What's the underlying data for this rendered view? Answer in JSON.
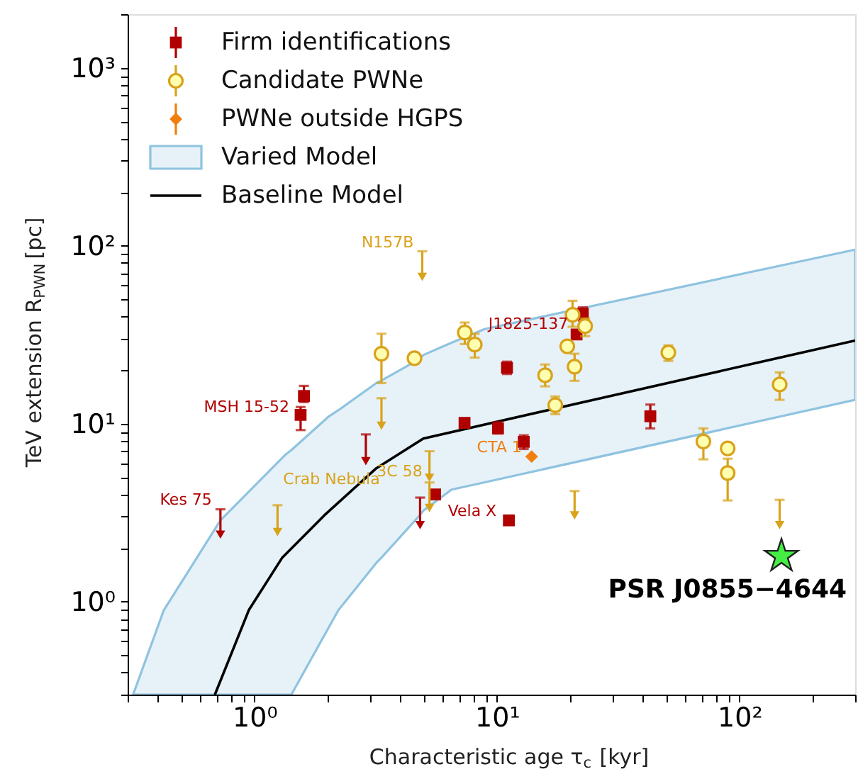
{
  "chart_data": {
    "type": "scatter",
    "xlabel": "Characteristic age τ$_{c}$ [kyr]",
    "ylabel": "TeV extension R$_{PWN}$ [pc]",
    "log": "xy",
    "grid": false,
    "legend": "top left",
    "xlim": [
      0.3,
      300
    ],
    "ylim": [
      0.3,
      2000
    ],
    "xticks": [
      {
        "value": 0.3,
        "label": null
      },
      {
        "value": 0.4,
        "label": null
      },
      {
        "value": 0.5,
        "label": null
      },
      {
        "value": 0.6,
        "label": null
      },
      {
        "value": 0.7,
        "label": null
      },
      {
        "value": 0.8,
        "label": null
      },
      {
        "value": 0.9,
        "label": null
      },
      {
        "value": 1,
        "label": "10⁰"
      },
      {
        "value": 2,
        "label": null
      },
      {
        "value": 3,
        "label": null
      },
      {
        "value": 4,
        "label": null
      },
      {
        "value": 5,
        "label": null
      },
      {
        "value": 6,
        "label": null
      },
      {
        "value": 7,
        "label": null
      },
      {
        "value": 8,
        "label": null
      },
      {
        "value": 9,
        "label": null
      },
      {
        "value": 10,
        "label": "10¹"
      },
      {
        "value": 20,
        "label": null
      },
      {
        "value": 30,
        "label": null
      },
      {
        "value": 40,
        "label": null
      },
      {
        "value": 50,
        "label": null
      },
      {
        "value": 60,
        "label": null
      },
      {
        "value": 70,
        "label": null
      },
      {
        "value": 80,
        "label": null
      },
      {
        "value": 90,
        "label": null
      },
      {
        "value": 100,
        "label": "10²"
      },
      {
        "value": 200,
        "label": null
      },
      {
        "value": 300,
        "label": null
      }
    ],
    "yticks": [
      {
        "value": 0.3,
        "label": null
      },
      {
        "value": 0.4,
        "label": null
      },
      {
        "value": 0.5,
        "label": null
      },
      {
        "value": 0.6,
        "label": null
      },
      {
        "value": 0.7,
        "label": null
      },
      {
        "value": 0.8,
        "label": null
      },
      {
        "value": 0.9,
        "label": null
      },
      {
        "value": 1,
        "label": "10⁰"
      },
      {
        "value": 2,
        "label": null
      },
      {
        "value": 3,
        "label": null
      },
      {
        "value": 4,
        "label": null
      },
      {
        "value": 5,
        "label": null
      },
      {
        "value": 6,
        "label": null
      },
      {
        "value": 7,
        "label": null
      },
      {
        "value": 8,
        "label": null
      },
      {
        "value": 9,
        "label": null
      },
      {
        "value": 10,
        "label": "10¹"
      },
      {
        "value": 20,
        "label": null
      },
      {
        "value": 30,
        "label": null
      },
      {
        "value": 40,
        "label": null
      },
      {
        "value": 50,
        "label": null
      },
      {
        "value": 60,
        "label": null
      },
      {
        "value": 70,
        "label": null
      },
      {
        "value": 80,
        "label": null
      },
      {
        "value": 90,
        "label": null
      },
      {
        "value": 100,
        "label": "10²"
      },
      {
        "value": 200,
        "label": null
      },
      {
        "value": 300,
        "label": null
      },
      {
        "value": 400,
        "label": null
      },
      {
        "value": 500,
        "label": null
      },
      {
        "value": 600,
        "label": null
      },
      {
        "value": 700,
        "label": null
      },
      {
        "value": 800,
        "label": null
      },
      {
        "value": 900,
        "label": null
      },
      {
        "value": 1000,
        "label": "10³"
      },
      {
        "value": 2000,
        "label": null
      }
    ],
    "series": [
      {
        "name": "Firm identifications",
        "type": "scatter",
        "marker": "square",
        "color": "#b00000",
        "x": [
          1.6,
          1.55,
          7.35,
          10.1,
          11.0,
          12.9,
          11.2,
          5.56,
          21.3,
          22.6,
          42.9
        ],
        "values": [
          14.3,
          11.2,
          10.1,
          9.4,
          20.6,
          7.9,
          2.86,
          4.0,
          31.7,
          41.5,
          11.0
        ],
        "errors": [
          [
            13.2,
            16.3
          ],
          [
            9.2,
            12.4
          ],
          null,
          [
            8.8,
            10.2
          ],
          [
            19.0,
            22.3
          ],
          [
            7.2,
            8.6
          ],
          null,
          null,
          null,
          [
            38,
            45
          ],
          [
            9.4,
            12.8
          ]
        ]
      },
      {
        "name": "Candidate PWNe",
        "type": "scatter",
        "marker": "circle",
        "color": "#d9a21b",
        "x": [
          3.34,
          4.57,
          7.37,
          8.1,
          15.8,
          17.4,
          19.5,
          20.5,
          23.1,
          20.9,
          50.9,
          146.5,
          71,
          89.4,
          89.4
        ],
        "values": [
          24.7,
          23.3,
          32.5,
          27.8,
          18.7,
          12.7,
          27.2,
          40.9,
          35.3,
          20.9,
          25.1,
          16.6,
          7.94,
          7.26,
          5.28
        ],
        "errors": [
          [
            16.9,
            32
          ],
          null,
          [
            28,
            37
          ],
          [
            23.5,
            32
          ],
          [
            16.2,
            21.5
          ],
          [
            11.3,
            14.2
          ],
          null,
          [
            35,
            49
          ],
          [
            31,
            39
          ],
          [
            17.4,
            24.7
          ],
          [
            22.5,
            27.5
          ],
          [
            13.6,
            19.4
          ],
          [
            6.3,
            9.4
          ],
          null,
          [
            3.7,
            6.35
          ]
        ]
      },
      {
        "name": "PWNe outside HGPS",
        "type": "scatter",
        "marker": "diamond",
        "color": "#f07f10",
        "x": [
          13.9
        ],
        "values": [
          6.53
        ],
        "errors": [
          null
        ]
      },
      {
        "name": "Varied Model",
        "type": "area",
        "color": "#8fc3e0",
        "x": [
          0.316,
          0.423,
          0.724,
          1.35,
          1.42,
          2.03,
          2.22,
          3.18,
          3.32,
          4.75,
          4.97,
          6.5,
          8.9,
          300
        ],
        "lower": [
          0.3,
          0.3,
          0.3,
          0.3,
          0.3,
          0.72,
          0.895,
          1.65,
          1.75,
          3.0,
          3.24,
          4.26,
          4.68,
          13.6
        ],
        "values": [
          null,
          null,
          null,
          null,
          null,
          null,
          null,
          null,
          null,
          null,
          null,
          null,
          null,
          null
        ],
        "upper": [
          0.3,
          0.895,
          2.86,
          6.74,
          7.1,
          11.0,
          11.9,
          16.9,
          17.4,
          22.9,
          24.3,
          28.5,
          34,
          95
        ]
      },
      {
        "name": "Baseline Model",
        "type": "line",
        "color": "#000000",
        "line_style": "solid",
        "x": [
          0.687,
          0.948,
          1.3,
          1.94,
          3.18,
          4.97,
          30,
          300
        ],
        "values": [
          0.3,
          0.895,
          1.76,
          3.05,
          5.61,
          8.25,
          14.4,
          29.3
        ]
      },
      {
        "type": "scatter",
        "marker": "triangle",
        "color": "#b00000",
        "x": [
          0.724,
          2.88,
          4.82
        ],
        "values": [
          2.38,
          6.15,
          2.69
        ],
        "errors": [
          [
            2.38,
            3.3
          ],
          [
            6.15,
            8.7
          ],
          [
            2.69,
            3.84
          ]
        ]
      },
      {
        "type": "scatter",
        "marker": "triangle",
        "color": "#d9a21b",
        "x": [
          4.92,
          1.245,
          3.34,
          5.27,
          5.27,
          20.9,
          146.5
        ],
        "values": [
          66.8,
          2.46,
          9.73,
          4.96,
          3.36,
          3.05,
          2.69
        ],
        "errors": [
          [
            66.8,
            93
          ],
          [
            2.46,
            3.48
          ],
          [
            9.73,
            13.9
          ],
          [
            4.96,
            7.0
          ],
          [
            3.36,
            4.67
          ],
          [
            3.05,
            4.18
          ],
          [
            2.69,
            3.73
          ]
        ]
      },
      {
        "type": "scatter",
        "marker": "star",
        "color": "#44ee44",
        "x": [
          149
        ],
        "values": [
          1.8
        ]
      }
    ],
    "annotations": [
      {
        "text": "N157B",
        "x": 4.92,
        "y": 66.8
      },
      {
        "text": "Kes 75",
        "x": 0.724,
        "y": 2.38
      },
      {
        "text": "MSH 15-52",
        "x": 1.55,
        "y": 11.2
      },
      {
        "text": "J1825-137",
        "x": 21.3,
        "y": 31.7
      },
      {
        "text": "Vela X",
        "x": 5.56,
        "y": 4.0
      },
      {
        "text": "CTA 1",
        "x": 13.9,
        "y": 6.53
      },
      {
        "text": "3C 58",
        "x": 5.27,
        "y": 4.96
      },
      {
        "text": "Crab Nebula",
        "x": 1.245,
        "y": 2.46
      },
      {
        "text": "PSR J0855−4644",
        "x": 149,
        "y": 1.8
      }
    ]
  }
}
